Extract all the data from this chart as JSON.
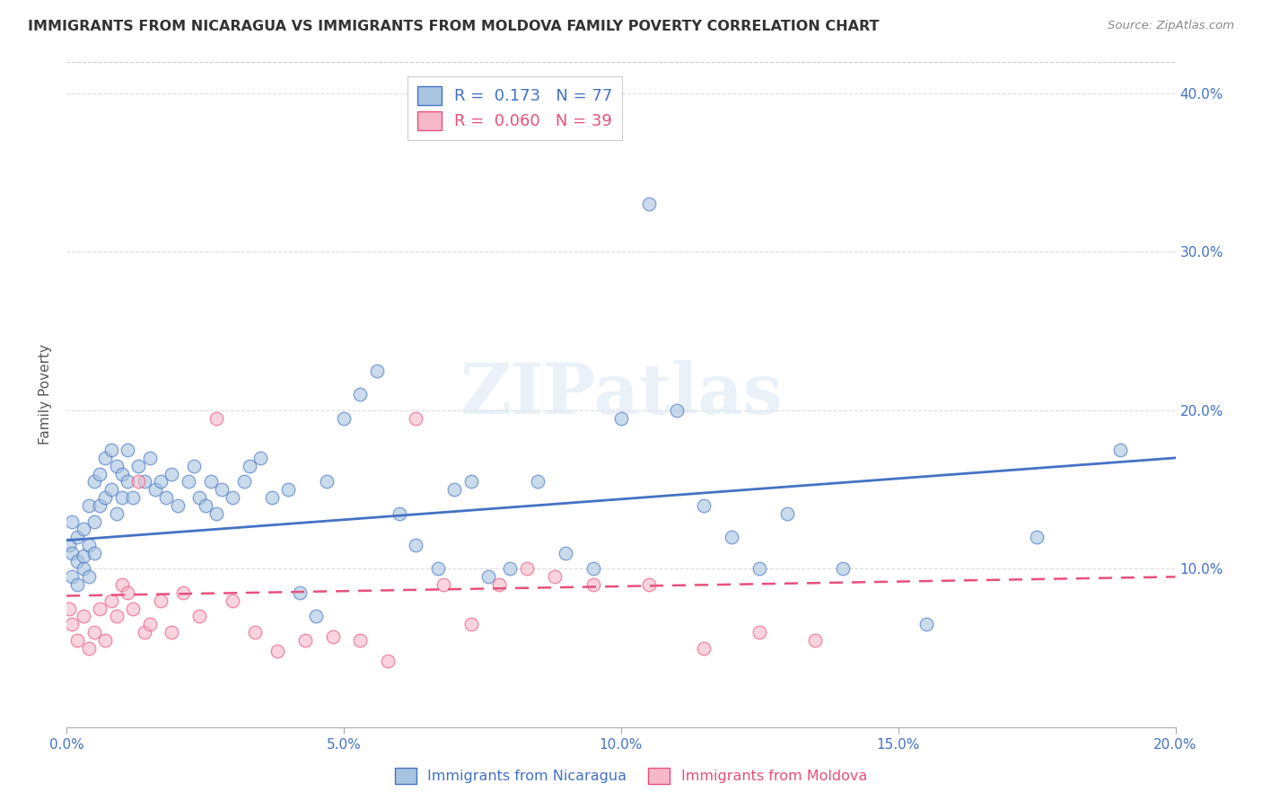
{
  "title": "IMMIGRANTS FROM NICARAGUA VS IMMIGRANTS FROM MOLDOVA FAMILY POVERTY CORRELATION CHART",
  "source": "Source: ZipAtlas.com",
  "ylabel": "Family Poverty",
  "xlim": [
    0.0,
    0.2
  ],
  "ylim": [
    0.0,
    0.42
  ],
  "xticks": [
    0.0,
    0.05,
    0.1,
    0.15,
    0.2
  ],
  "yticks": [
    0.0,
    0.1,
    0.2,
    0.3,
    0.4
  ],
  "xtick_labels": [
    "0.0%",
    "5.0%",
    "10.0%",
    "15.0%",
    "20.0%"
  ],
  "ytick_labels_right": [
    "",
    "10.0%",
    "20.0%",
    "30.0%",
    "40.0%"
  ],
  "series1_color": "#a8c4e0",
  "series2_color": "#f5b8c8",
  "line1_color": "#4472c4",
  "line2_color": "#e8507a",
  "legend_r1": "R =  0.173",
  "legend_n1": "N = 77",
  "legend_r2": "R =  0.060",
  "legend_n2": "N = 39",
  "legend_label1": "Immigrants from Nicaragua",
  "legend_label2": "Immigrants from Moldova",
  "watermark": "ZIPatlas",
  "background_color": "#ffffff",
  "grid_color": "#cccccc",
  "nicaragua_x": [
    0.0005,
    0.001,
    0.001,
    0.001,
    0.002,
    0.002,
    0.002,
    0.003,
    0.003,
    0.003,
    0.004,
    0.004,
    0.004,
    0.005,
    0.005,
    0.005,
    0.006,
    0.006,
    0.007,
    0.007,
    0.008,
    0.008,
    0.009,
    0.009,
    0.01,
    0.01,
    0.011,
    0.011,
    0.012,
    0.013,
    0.014,
    0.015,
    0.016,
    0.017,
    0.018,
    0.019,
    0.02,
    0.022,
    0.023,
    0.024,
    0.025,
    0.026,
    0.027,
    0.028,
    0.03,
    0.032,
    0.033,
    0.035,
    0.037,
    0.04,
    0.042,
    0.045,
    0.047,
    0.05,
    0.053,
    0.056,
    0.06,
    0.063,
    0.067,
    0.07,
    0.073,
    0.076,
    0.08,
    0.085,
    0.09,
    0.095,
    0.1,
    0.105,
    0.11,
    0.115,
    0.12,
    0.125,
    0.13,
    0.14,
    0.155,
    0.175,
    0.19
  ],
  "nicaragua_y": [
    0.115,
    0.11,
    0.13,
    0.095,
    0.12,
    0.105,
    0.09,
    0.125,
    0.1,
    0.108,
    0.14,
    0.115,
    0.095,
    0.155,
    0.13,
    0.11,
    0.16,
    0.14,
    0.17,
    0.145,
    0.175,
    0.15,
    0.165,
    0.135,
    0.16,
    0.145,
    0.155,
    0.175,
    0.145,
    0.165,
    0.155,
    0.17,
    0.15,
    0.155,
    0.145,
    0.16,
    0.14,
    0.155,
    0.165,
    0.145,
    0.14,
    0.155,
    0.135,
    0.15,
    0.145,
    0.155,
    0.165,
    0.17,
    0.145,
    0.15,
    0.085,
    0.07,
    0.155,
    0.195,
    0.21,
    0.225,
    0.135,
    0.115,
    0.1,
    0.15,
    0.155,
    0.095,
    0.1,
    0.155,
    0.11,
    0.1,
    0.195,
    0.33,
    0.2,
    0.14,
    0.12,
    0.1,
    0.135,
    0.1,
    0.065,
    0.12,
    0.175
  ],
  "moldova_x": [
    0.0005,
    0.001,
    0.002,
    0.003,
    0.004,
    0.005,
    0.006,
    0.007,
    0.008,
    0.009,
    0.01,
    0.011,
    0.012,
    0.013,
    0.014,
    0.015,
    0.017,
    0.019,
    0.021,
    0.024,
    0.027,
    0.03,
    0.034,
    0.038,
    0.043,
    0.048,
    0.053,
    0.058,
    0.063,
    0.068,
    0.073,
    0.078,
    0.083,
    0.088,
    0.095,
    0.105,
    0.115,
    0.125,
    0.135
  ],
  "moldova_y": [
    0.075,
    0.065,
    0.055,
    0.07,
    0.05,
    0.06,
    0.075,
    0.055,
    0.08,
    0.07,
    0.09,
    0.085,
    0.075,
    0.155,
    0.06,
    0.065,
    0.08,
    0.06,
    0.085,
    0.07,
    0.195,
    0.08,
    0.06,
    0.048,
    0.055,
    0.057,
    0.055,
    0.042,
    0.195,
    0.09,
    0.065,
    0.09,
    0.1,
    0.095,
    0.09,
    0.09,
    0.05,
    0.06,
    0.055
  ],
  "line1_x": [
    0.0,
    0.2
  ],
  "line1_y": [
    0.118,
    0.17
  ],
  "line2_x": [
    0.0,
    0.2
  ],
  "line2_y": [
    0.083,
    0.095
  ]
}
